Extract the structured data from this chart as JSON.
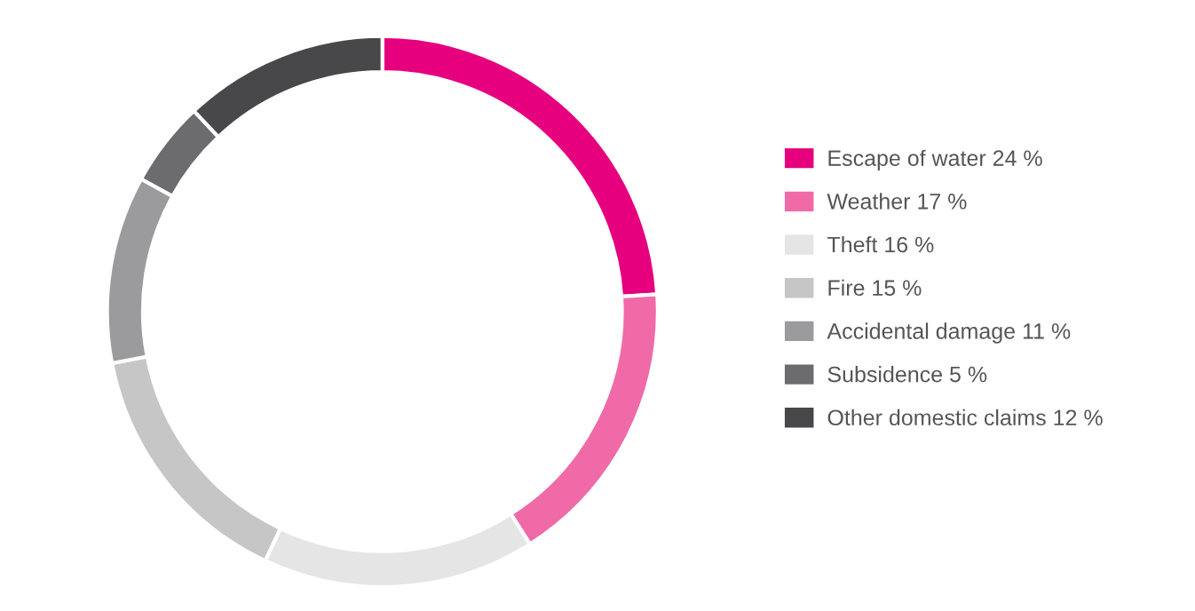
{
  "chart_data": {
    "type": "donut",
    "categories": [
      "Escape of water",
      "Weather",
      "Theft",
      "Fire",
      "Accidental damage",
      "Subsidence",
      "Other domestic claims"
    ],
    "values": [
      24,
      17,
      16,
      15,
      11,
      5,
      12
    ],
    "value_labels": [
      "24 %",
      "17 %",
      "16 %",
      "15 %",
      "11 %",
      "5 %",
      "12 %"
    ],
    "colors": [
      "#e6007e",
      "#f06aa8",
      "#e5e5e6",
      "#c6c6c7",
      "#9b9b9d",
      "#6c6c6e",
      "#48484a"
    ],
    "legend": "right"
  }
}
